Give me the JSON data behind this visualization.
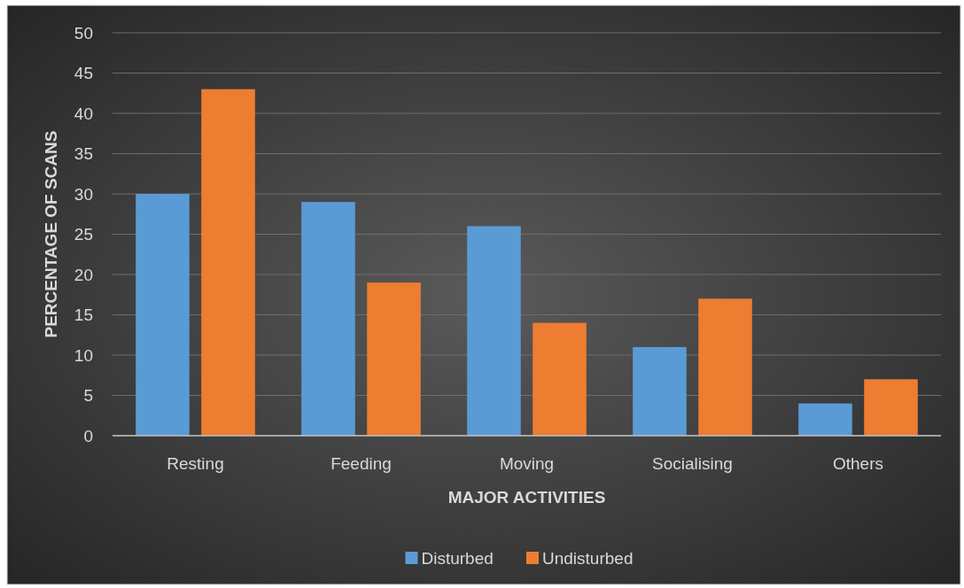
{
  "chart_data": {
    "type": "bar",
    "xlabel": "MAJOR ACTIVITIES",
    "ylabel": "PERCENTAGE OF SCANS",
    "categories": [
      "Resting",
      "Feeding",
      "Moving",
      "Socialising",
      "Others"
    ],
    "series": [
      {
        "name": "Disturbed",
        "color": "#5b9bd5",
        "values": [
          30,
          29,
          26,
          11,
          4
        ]
      },
      {
        "name": "Undisturbed",
        "color": "#ed7d31",
        "values": [
          43,
          19,
          14,
          17,
          7
        ]
      }
    ],
    "ylim": [
      0,
      50
    ],
    "yticks": [
      0,
      5,
      10,
      15,
      20,
      25,
      30,
      35,
      40,
      45,
      50
    ],
    "grid": "y",
    "legend": "bottom"
  }
}
